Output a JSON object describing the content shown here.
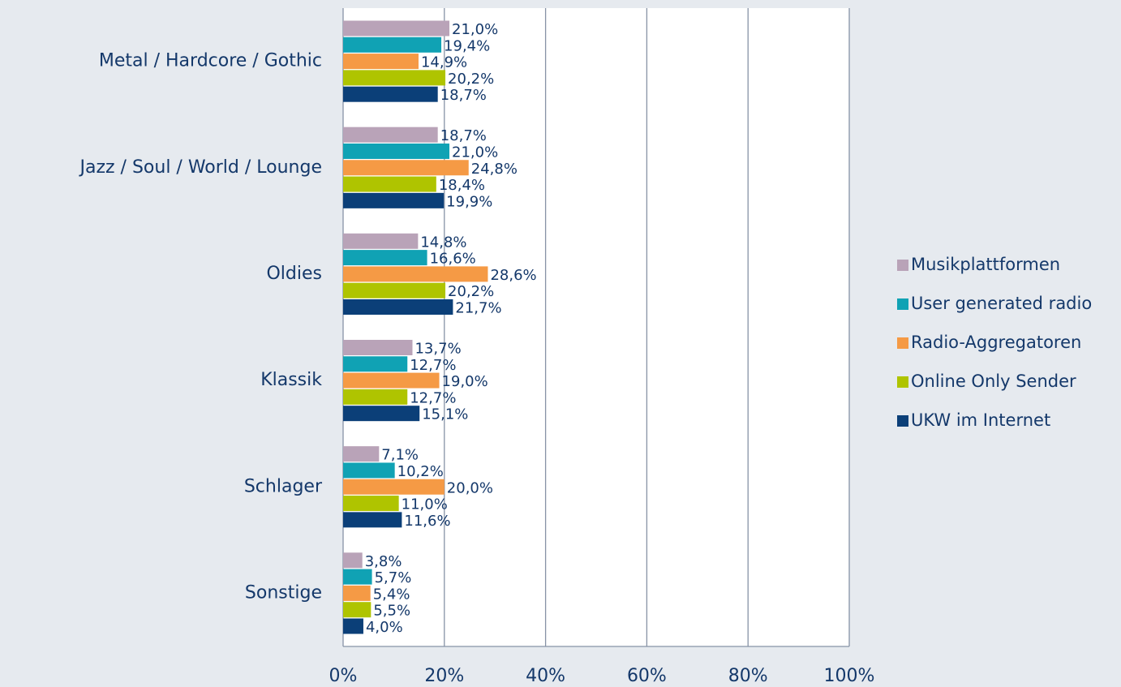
{
  "chart_data": {
    "type": "barh",
    "categories": [
      "Metal / Hardcore / Gothic",
      "Jazz / Soul / World / Lounge",
      "Oldies",
      "Klassik",
      "Schlager",
      "Sonstige"
    ],
    "series": [
      {
        "name": "Musikplattformen",
        "color": "#b9a3b8",
        "values": [
          21.0,
          18.7,
          14.8,
          13.7,
          7.1,
          3.8
        ],
        "value_labels": [
          "21,0%",
          "18,7%",
          "14,8%",
          "13,7%",
          "7,1%",
          "3,8%"
        ]
      },
      {
        "name": "User generated radio",
        "color": "#10a2b4",
        "values": [
          19.4,
          21.0,
          16.6,
          12.7,
          10.2,
          5.7
        ],
        "value_labels": [
          "19,4%",
          "21,0%",
          "16,6%",
          "12,7%",
          "10,2%",
          "5,7%"
        ]
      },
      {
        "name": "Radio-Aggregatoren",
        "color": "#f59a45",
        "values": [
          14.9,
          24.8,
          28.6,
          19.0,
          20.0,
          5.4
        ],
        "value_labels": [
          "14,9%",
          "24,8%",
          "28,6%",
          "19,0%",
          "20,0%",
          "5,4%"
        ]
      },
      {
        "name": "Online Only Sender",
        "color": "#afc400",
        "values": [
          20.2,
          18.4,
          20.2,
          12.7,
          11.0,
          5.5
        ],
        "value_labels": [
          "20,2%",
          "18,4%",
          "20,2%",
          "12,7%",
          "11,0%",
          "5,5%"
        ]
      },
      {
        "name": "UKW im Internet",
        "color": "#0b3f78",
        "values": [
          18.7,
          19.9,
          21.7,
          15.1,
          11.6,
          4.0
        ],
        "value_labels": [
          "18,7%",
          "19,9%",
          "21,7%",
          "15,1%",
          "11,6%",
          "4,0%"
        ]
      }
    ],
    "xlim": [
      0,
      100
    ],
    "xticks": [
      {
        "value": 0,
        "label": "0%"
      },
      {
        "value": 20,
        "label": "20%"
      },
      {
        "value": 40,
        "label": "40%"
      },
      {
        "value": 60,
        "label": "60%"
      },
      {
        "value": 80,
        "label": "80%"
      },
      {
        "value": 100,
        "label": "100%"
      }
    ],
    "grid": true,
    "legend": "right"
  }
}
